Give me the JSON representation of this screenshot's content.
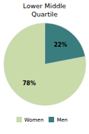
{
  "chart_data": {
    "type": "pie",
    "title": "Lower Middle\nQuartile",
    "categories": [
      "Men",
      "Women"
    ],
    "values": [
      22,
      78
    ],
    "value_labels": [
      "22%",
      "78%"
    ],
    "colors": [
      "#3a7d7e",
      "#c8dba8"
    ],
    "data_labels": true,
    "legend": "bottom"
  }
}
